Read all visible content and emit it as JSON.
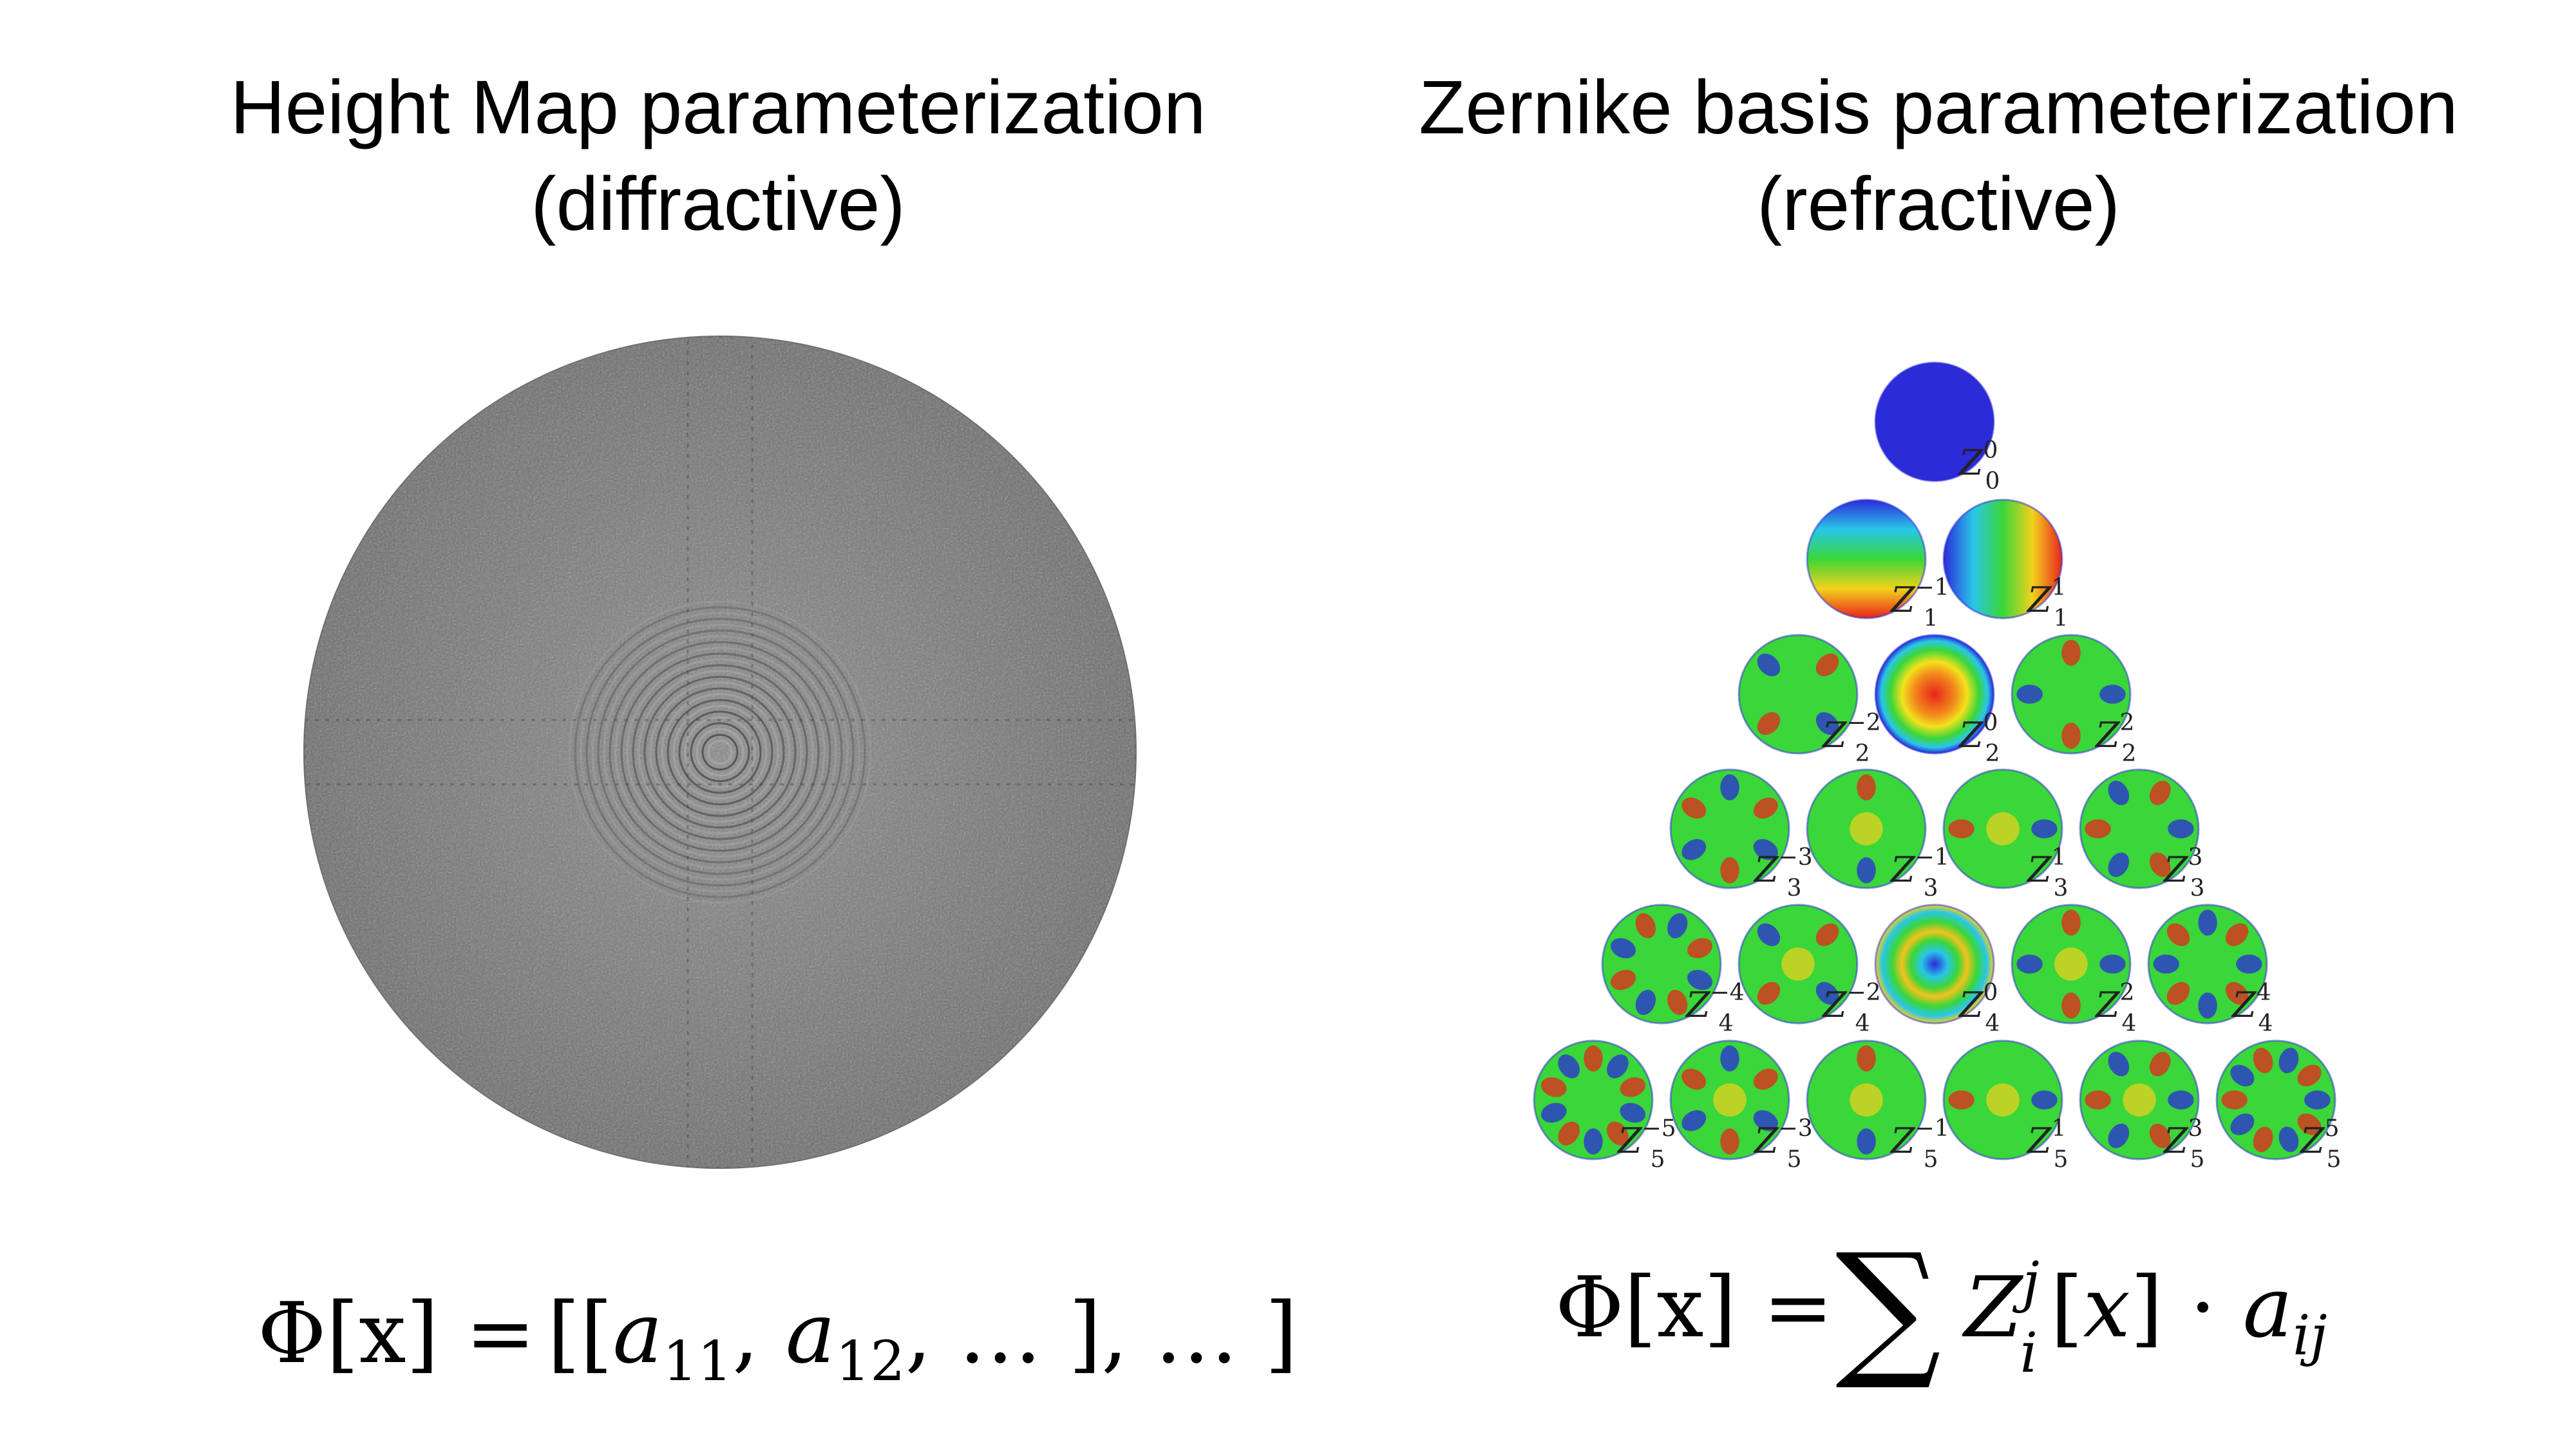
{
  "left_panel": {
    "title_line1": "Height Map parameterization",
    "title_line2": "(diffractive)",
    "equation": {
      "lhs": "Φ[x] = ",
      "text": "[[a11, a12, ...], ...]"
    }
  },
  "right_panel": {
    "title_line1": "Zernike basis parameterization",
    "title_line2": "(refractive)",
    "equation": {
      "lhs": "Φ[x] = ",
      "sum": "∑",
      "text": "Z_i^j[x] · a_ij"
    },
    "zernike_modes": [
      {
        "n": 0,
        "m": 0,
        "label": "Z",
        "sub": "0",
        "sup": "0"
      },
      {
        "n": 1,
        "m": -1,
        "label": "Z",
        "sub": "1",
        "sup": "−1"
      },
      {
        "n": 1,
        "m": 1,
        "label": "Z",
        "sub": "1",
        "sup": "1"
      },
      {
        "n": 2,
        "m": -2,
        "label": "Z",
        "sub": "2",
        "sup": "−2"
      },
      {
        "n": 2,
        "m": 0,
        "label": "Z",
        "sub": "2",
        "sup": "0"
      },
      {
        "n": 2,
        "m": 2,
        "label": "Z",
        "sub": "2",
        "sup": "2"
      },
      {
        "n": 3,
        "m": -3,
        "label": "Z",
        "sub": "3",
        "sup": "−3"
      },
      {
        "n": 3,
        "m": -1,
        "label": "Z",
        "sub": "3",
        "sup": "−1"
      },
      {
        "n": 3,
        "m": 1,
        "label": "Z",
        "sub": "3",
        "sup": "1"
      },
      {
        "n": 3,
        "m": 3,
        "label": "Z",
        "sub": "3",
        "sup": "3"
      },
      {
        "n": 4,
        "m": -4,
        "label": "Z",
        "sub": "4",
        "sup": "−4"
      },
      {
        "n": 4,
        "m": -2,
        "label": "Z",
        "sub": "4",
        "sup": "−2"
      },
      {
        "n": 4,
        "m": 0,
        "label": "Z",
        "sub": "4",
        "sup": "0"
      },
      {
        "n": 4,
        "m": 2,
        "label": "Z",
        "sub": "4",
        "sup": "2"
      },
      {
        "n": 4,
        "m": 4,
        "label": "Z",
        "sub": "4",
        "sup": "4"
      },
      {
        "n": 5,
        "m": -5,
        "label": "Z",
        "sub": "5",
        "sup": "−5"
      },
      {
        "n": 5,
        "m": -3,
        "label": "Z",
        "sub": "5",
        "sup": "−3"
      },
      {
        "n": 5,
        "m": -1,
        "label": "Z",
        "sub": "5",
        "sup": "−1"
      },
      {
        "n": 5,
        "m": 1,
        "label": "Z",
        "sub": "5",
        "sup": "1"
      },
      {
        "n": 5,
        "m": 3,
        "label": "Z",
        "sub": "5",
        "sup": "3"
      },
      {
        "n": 5,
        "m": 5,
        "label": "Z",
        "sub": "5",
        "sup": "5"
      }
    ]
  },
  "colors": {
    "height_map_gray": "#7c7c7c",
    "zernike_low": "#2b2bd8",
    "zernike_mid": "#3ad63a",
    "zernike_high": "#e8241c"
  }
}
